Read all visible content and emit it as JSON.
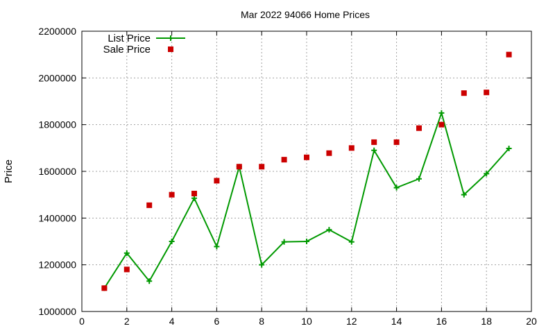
{
  "chart_data": {
    "type": "line",
    "title": "Mar 2022 94066 Home Prices",
    "xlabel": "",
    "ylabel": "Price",
    "xlim": [
      0,
      20
    ],
    "ylim": [
      1000000,
      2200000
    ],
    "x_ticks": [
      "0",
      "2",
      "4",
      "6",
      "8",
      "10",
      "12",
      "14",
      "16",
      "18",
      "20"
    ],
    "x_tick_values": [
      0,
      2,
      4,
      6,
      8,
      10,
      12,
      14,
      16,
      18,
      20
    ],
    "y_ticks": [
      "1000000",
      "1200000",
      "1400000",
      "1600000",
      "1800000",
      "2000000",
      "2200000"
    ],
    "y_tick_values": [
      1000000,
      1200000,
      1400000,
      1600000,
      1800000,
      2000000,
      2200000
    ],
    "grid": true,
    "legend_position": "top-left",
    "series": [
      {
        "name": "List Price",
        "style": "line-with-plus-markers",
        "color": "#009900",
        "x": [
          1,
          2,
          3,
          4,
          5,
          6,
          7,
          8,
          9,
          10,
          11,
          12,
          13,
          14,
          15,
          16,
          17,
          18,
          19
        ],
        "values": [
          1100000,
          1250000,
          1130000,
          1300000,
          1485000,
          1278000,
          1620000,
          1200000,
          1298000,
          1300000,
          1350000,
          1298000,
          1690000,
          1530000,
          1568000,
          1850000,
          1500000,
          1590000,
          1698000
        ]
      },
      {
        "name": "Sale Price",
        "style": "square-markers",
        "color": "#cc0000",
        "x": [
          1,
          2,
          3,
          4,
          5,
          6,
          7,
          8,
          9,
          10,
          11,
          12,
          13,
          14,
          15,
          16,
          17,
          18,
          19
        ],
        "values": [
          1100000,
          1180000,
          1455000,
          1500000,
          1505000,
          1560000,
          1620000,
          1620000,
          1650000,
          1660000,
          1678000,
          1700000,
          1725000,
          1725000,
          1785000,
          1800000,
          1935000,
          1938000,
          2100000
        ]
      }
    ]
  }
}
